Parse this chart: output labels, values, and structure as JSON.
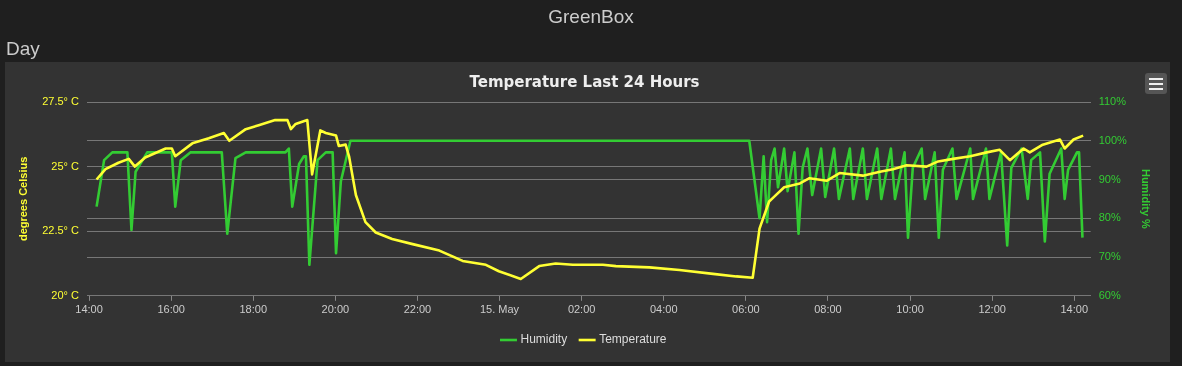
{
  "chart_data": {
    "type": "line",
    "title": "Temperature Last 24 Hours",
    "annotations": [
      "GreenBox",
      "Day"
    ],
    "ylabel": "degrees Celsius",
    "y2label": "Humidity %",
    "xlim": [
      "--05-14T13:57",
      "--05-15T14:24"
    ],
    "xticks": [
      {
        "value": "--05-14T14:00",
        "label": "14:00"
      },
      {
        "value": "--05-14T16:00",
        "label": "16:00"
      },
      {
        "value": "--05-14T18:00",
        "label": "18:00"
      },
      {
        "value": "--05-14T20:00",
        "label": "20:00"
      },
      {
        "value": "--05-14T22:00",
        "label": "22:00"
      },
      {
        "value": "--05-15T00:00",
        "label": "15. May"
      },
      {
        "value": "--05-15T02:00",
        "label": "02:00"
      },
      {
        "value": "--05-15T04:00",
        "label": "04:00"
      },
      {
        "value": "--05-15T06:00",
        "label": "06:00"
      },
      {
        "value": "--05-15T08:00",
        "label": "08:00"
      },
      {
        "value": "--05-15T10:00",
        "label": "10:00"
      },
      {
        "value": "--05-15T12:00",
        "label": "12:00"
      },
      {
        "value": "--05-15T14:00",
        "label": "14:00"
      }
    ],
    "ylim": [
      20,
      27.5
    ],
    "yticks": [
      {
        "value": 20,
        "label": "20° C"
      },
      {
        "value": 22.5,
        "label": "22.5° C"
      },
      {
        "value": 25,
        "label": "25° C"
      },
      {
        "value": 27.5,
        "label": "27.5° C"
      }
    ],
    "y2lim": [
      60,
      110
    ],
    "y2ticks": [
      {
        "value": 60,
        "label": "60%"
      },
      {
        "value": 70,
        "label": "70%"
      },
      {
        "value": 80,
        "label": "80%"
      },
      {
        "value": 90,
        "label": "90%"
      },
      {
        "value": 100,
        "label": "100%"
      },
      {
        "value": 110,
        "label": "110%"
      }
    ],
    "grid": "y",
    "legend": "bottom",
    "marker": "none",
    "line_style": "solid",
    "series": [
      {
        "name": "Humidity",
        "color": "#33cc33",
        "axis": "y2",
        "x": [
          "--05-14T14:11",
          "--05-14T14:22",
          "--05-14T14:34",
          "--05-14T14:56",
          "--05-14T15:02",
          "--05-14T15:08",
          "--05-14T15:25",
          "--05-14T16:01",
          "--05-14T16:06",
          "--05-14T16:14",
          "--05-14T16:28",
          "--05-14T17:14",
          "--05-14T17:22",
          "--05-14T17:34",
          "--05-14T17:49",
          "--05-14T18:47",
          "--05-14T18:52",
          "--05-14T18:57",
          "--05-14T19:07",
          "--05-14T19:14",
          "--05-14T19:17",
          "--05-14T19:22",
          "--05-14T19:34",
          "--05-14T19:46",
          "--05-14T19:56",
          "--05-14T20:01",
          "--05-14T20:08",
          "--05-14T20:22",
          "--05-15T06:05",
          "--05-15T06:20",
          "--05-15T06:26",
          "--05-15T06:31",
          "--05-15T06:37",
          "--05-15T06:42",
          "--05-15T06:47",
          "--05-15T06:56",
          "--05-15T07:01",
          "--05-15T07:11",
          "--05-15T07:17",
          "--05-15T07:23",
          "--05-15T07:30",
          "--05-15T07:37",
          "--05-15T07:50",
          "--05-15T07:56",
          "--05-15T08:09",
          "--05-15T08:16",
          "--05-15T08:32",
          "--05-15T08:37",
          "--05-15T08:51",
          "--05-15T08:57",
          "--05-15T09:12",
          "--05-15T09:18",
          "--05-15T09:32",
          "--05-15T09:38",
          "--05-15T09:52",
          "--05-15T09:57",
          "--05-15T10:04",
          "--05-15T10:17",
          "--05-15T10:22",
          "--05-15T10:36",
          "--05-15T10:42",
          "--05-15T10:48",
          "--05-15T11:02",
          "--05-15T11:08",
          "--05-15T11:28",
          "--05-15T11:32",
          "--05-15T11:51",
          "--05-15T11:56",
          "--05-15T12:13",
          "--05-15T12:22",
          "--05-15T12:28",
          "--05-15T12:43",
          "--05-15T12:52",
          "--05-15T12:57",
          "--05-15T13:10",
          "--05-15T13:17",
          "--05-15T13:24",
          "--05-15T13:41",
          "--05-15T13:46",
          "--05-15T13:51",
          "--05-15T14:04",
          "--05-15T14:07",
          "--05-15T14:12"
        ],
        "values": [
          83,
          95,
          97,
          97,
          77,
          92,
          97,
          97,
          83,
          95,
          97,
          97,
          76,
          95.5,
          97,
          97,
          98,
          83,
          94,
          96,
          96,
          68,
          95,
          97,
          97,
          71,
          89.5,
          100,
          100,
          80,
          96,
          79,
          95,
          98,
          88,
          98,
          87,
          97,
          76,
          93,
          98,
          86,
          98,
          85.5,
          98,
          85,
          98,
          85,
          98,
          85,
          98,
          85,
          98,
          85,
          97,
          75,
          93,
          98,
          85,
          97,
          75,
          92.5,
          98,
          85,
          98,
          85,
          98,
          85,
          97,
          73,
          93,
          98,
          85,
          95,
          97,
          74,
          91.5,
          98,
          85,
          92.5,
          97,
          97,
          75
        ]
      },
      {
        "name": "Temperature",
        "color": "#ffff33",
        "x": [
          "--05-14T14:11",
          "--05-14T14:24",
          "--05-14T14:43",
          "--05-14T14:58",
          "--05-14T15:07",
          "--05-14T15:22",
          "--05-14T15:52",
          "--05-14T16:01",
          "--05-14T16:06",
          "--05-14T16:31",
          "--05-14T16:55",
          "--05-14T17:17",
          "--05-14T17:25",
          "--05-14T17:49",
          "--05-14T18:08",
          "--05-14T18:32",
          "--05-14T18:50",
          "--05-14T18:55",
          "--05-14T19:02",
          "--05-14T19:19",
          "--05-14T19:26",
          "--05-14T19:38",
          "--05-14T19:46",
          "--05-14T20:01",
          "--05-14T20:05",
          "--05-14T20:15",
          "--05-14T20:20",
          "--05-14T20:30",
          "--05-14T20:44",
          "--05-14T20:59",
          "--05-14T21:23",
          "--05-14T21:53",
          "--05-14T22:32",
          "--05-14T23:06",
          "--05-14T23:40",
          "--05-14T23:59",
          "--05-15T00:31",
          "--05-15T00:58",
          "--05-15T01:22",
          "--05-15T01:47",
          "--05-15T02:31",
          "--05-15T02:50",
          "--05-15T03:39",
          "--05-15T04:23",
          "--05-15T05:12",
          "--05-15T05:46",
          "--05-15T06:10",
          "--05-15T06:20",
          "--05-15T06:34",
          "--05-15T06:40",
          "--05-15T06:56",
          "--05-15T07:19",
          "--05-15T07:33",
          "--05-15T07:58",
          "--05-15T08:17",
          "--05-15T08:51",
          "--05-15T09:16",
          "--05-15T09:35",
          "--05-15T09:55",
          "--05-15T10:24",
          "--05-15T10:41",
          "--05-15T11:03",
          "--05-15T11:28",
          "--05-15T11:52",
          "--05-15T12:11",
          "--05-15T12:26",
          "--05-15T12:46",
          "--05-15T12:55",
          "--05-15T13:14",
          "--05-15T13:39",
          "--05-15T13:46",
          "--05-15T13:59",
          "--05-15T14:13"
        ],
        "values": [
          24.5,
          24.9,
          25.15,
          25.3,
          25,
          25.35,
          25.7,
          25.7,
          25.4,
          25.9,
          26.1,
          26.3,
          26,
          26.45,
          26.6,
          26.8,
          26.8,
          26.45,
          26.65,
          26.8,
          24.7,
          26.4,
          26.3,
          26.2,
          25.8,
          25.85,
          25.4,
          23.9,
          22.85,
          22.45,
          22.2,
          22,
          21.75,
          21.35,
          21.2,
          20.95,
          20.65,
          21.15,
          21.25,
          21.2,
          21.2,
          21.15,
          21.1,
          21,
          20.85,
          20.75,
          20.7,
          22.6,
          23.65,
          23.8,
          24.2,
          24.35,
          24.55,
          24.45,
          24.75,
          24.65,
          24.8,
          24.9,
          25.05,
          25,
          25.2,
          25.3,
          25.4,
          25.55,
          25.65,
          25.25,
          25.7,
          25.55,
          25.85,
          26.05,
          25.7,
          26.05,
          26.2
        ]
      }
    ]
  }
}
